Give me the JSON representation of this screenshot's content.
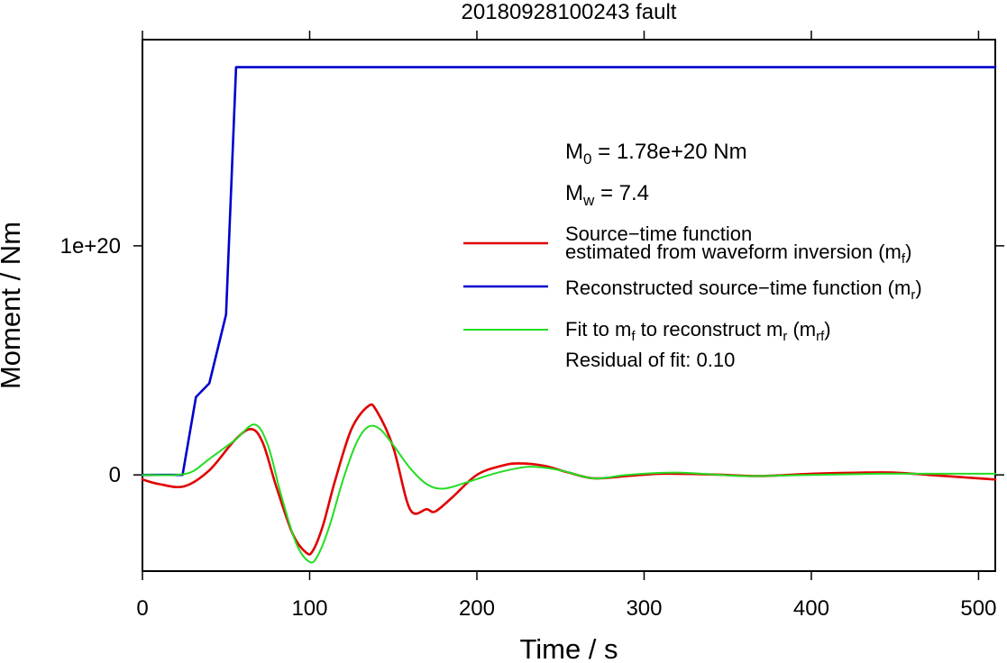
{
  "chart_data": {
    "type": "line",
    "title": "20180928100243 fault",
    "xlabel": "Time / s",
    "ylabel": "Moment / Nm",
    "xlim": [
      0,
      510
    ],
    "ylim": [
      -4.2e+19,
      1.9e+20
    ],
    "x_ticks": [
      0,
      100,
      200,
      300,
      400,
      500
    ],
    "x_tick_labels": [
      "0",
      "100",
      "200",
      "300",
      "400",
      "500"
    ],
    "y_ticks": [
      0,
      1e+20
    ],
    "y_tick_labels": [
      "0",
      "1e+20"
    ],
    "grid": false,
    "legend_placement": "right",
    "annotations": {
      "m0": {
        "base": "M",
        "sub": "0",
        "rest": " = 1.78e+20 Nm"
      },
      "mw": {
        "base": "M",
        "sub": "w",
        "rest": " = 7.4"
      },
      "residual": "Residual of fit: 0.10"
    },
    "legend": [
      {
        "color": "#e00000",
        "width": 2.5,
        "line1": "Source−time function",
        "line2": "estimated from waveform inversion (m",
        "line2_sub": "f",
        "line2_end": ")"
      },
      {
        "color": "#0000cc",
        "width": 2.5,
        "line1": "Reconstructed source−time function (m",
        "line1_sub": "r",
        "line1_end": ")"
      },
      {
        "color": "#22dd22",
        "width": 2,
        "line1": "Fit to m",
        "line1_sub": "f",
        "line1_mid": " to reconstruct m",
        "line1_sub2": "r",
        "line1_mid2": " (m",
        "line1_sub3": "rf",
        "line1_end": ")"
      }
    ],
    "series": [
      {
        "color": "#0000cc",
        "x": [
          0,
          24,
          32,
          40,
          50,
          56,
          510
        ],
        "y": [
          0,
          0,
          3.4e+19,
          4e+19,
          7e+19,
          1.78e+20,
          1.78e+20
        ]
      },
      {
        "color": "#e00000",
        "x": [
          0,
          10,
          25,
          40,
          55,
          65,
          72,
          80,
          90,
          98,
          102,
          108,
          115,
          125,
          135,
          140,
          150,
          160,
          170,
          175,
          185,
          200,
          215,
          225,
          240,
          255,
          270,
          290,
          310,
          340,
          370,
          400,
          430,
          450,
          470,
          490,
          510
        ],
        "y": [
          -2e+18,
          -4e+18,
          -5e+18,
          2e+18,
          1.5e+19,
          2e+19,
          1.4e+19,
          -5e+18,
          -2.6e+19,
          -3.4e+19,
          -3.3e+19,
          -2.2e+19,
          -3e+18,
          2e+19,
          3e+19,
          2.8e+19,
          1.2e+19,
          -1.5e+19,
          -1.5e+19,
          -1.6e+19,
          -1e+19,
          0.0,
          4e+18,
          5e+18,
          4e+18,
          1e+18,
          -1.5e+18,
          -5e+17,
          5e+17,
          2e+17,
          -5e+17,
          5e+17,
          1e+18,
          1e+18,
          0.0,
          -1e+18,
          -2e+18
        ]
      },
      {
        "color": "#22dd22",
        "x": [
          0,
          20,
          30,
          40,
          55,
          67,
          75,
          83,
          92,
          100,
          105,
          112,
          120,
          128,
          135,
          142,
          150,
          160,
          170,
          180,
          195,
          210,
          225,
          235,
          250,
          270,
          290,
          320,
          360,
          400,
          440,
          480,
          510
        ],
        "y": [
          0,
          0,
          1.5e+18,
          7e+18,
          1.5e+19,
          2.2e+19,
          1.3e+19,
          -9e+18,
          -3e+19,
          -3.8e+19,
          -3.5e+19,
          -2.2e+19,
          -2e+18,
          1.4e+19,
          2.1e+19,
          2e+19,
          1.3e+19,
          3e+18,
          -4e+18,
          -6e+18,
          -3e+18,
          5e+17,
          3e+18,
          3.5e+18,
          2e+18,
          -1.5e+18,
          0.0,
          1e+18,
          -5e+17,
          0.0,
          5e+17,
          5e+17,
          5e+17
        ]
      }
    ]
  }
}
